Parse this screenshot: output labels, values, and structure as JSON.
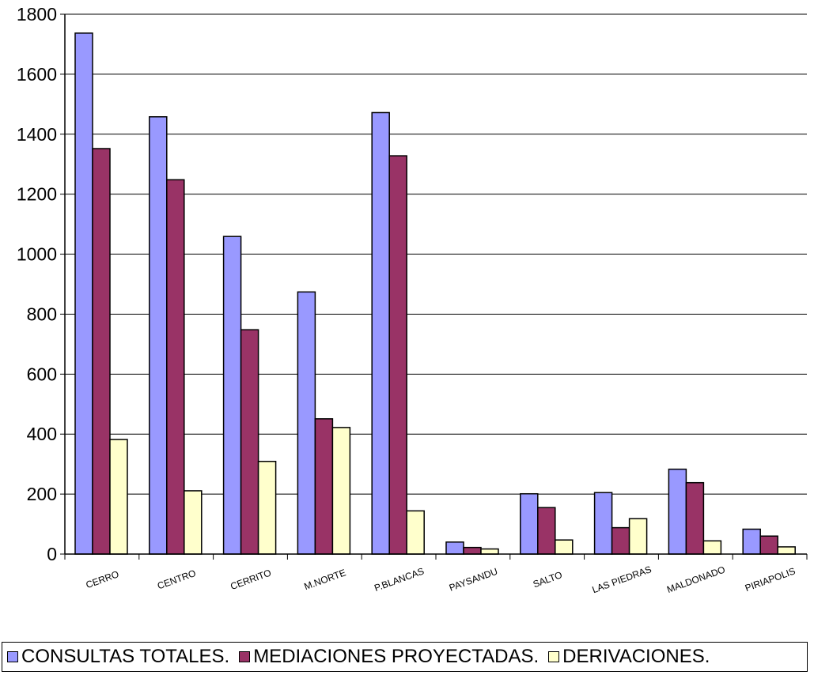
{
  "chart_data": {
    "type": "bar",
    "categories": [
      "CERRO",
      "CENTRO",
      "CERRITO",
      "M.NORTE",
      "P.BLANCAS",
      "PAYSANDU",
      "SALTO",
      "LAS PIEDRAS",
      "MALDONADO",
      "PIRIAPOLIS"
    ],
    "series": [
      {
        "name": "CONSULTAS TOTALES.",
        "color": "#9999ff",
        "values": [
          1737,
          1458,
          1059,
          874,
          1472,
          40,
          201,
          205,
          283,
          83
        ]
      },
      {
        "name": "MEDIACIONES PROYECTADAS.",
        "color": "#993366",
        "values": [
          1352,
          1248,
          748,
          451,
          1328,
          22,
          155,
          88,
          238,
          60
        ]
      },
      {
        "name": "DERIVACIONES.",
        "color": "#ffffcc",
        "values": [
          382,
          211,
          309,
          422,
          144,
          17,
          47,
          118,
          44,
          24
        ]
      }
    ],
    "yticks": [
      "0",
      "200",
      "400",
      "600",
      "800",
      "1000",
      "1200",
      "1400",
      "1600",
      "1800"
    ],
    "ylim": [
      0,
      1800
    ],
    "grid": true,
    "legend_position": "bottom",
    "title": "",
    "xlabel": "",
    "ylabel": ""
  }
}
